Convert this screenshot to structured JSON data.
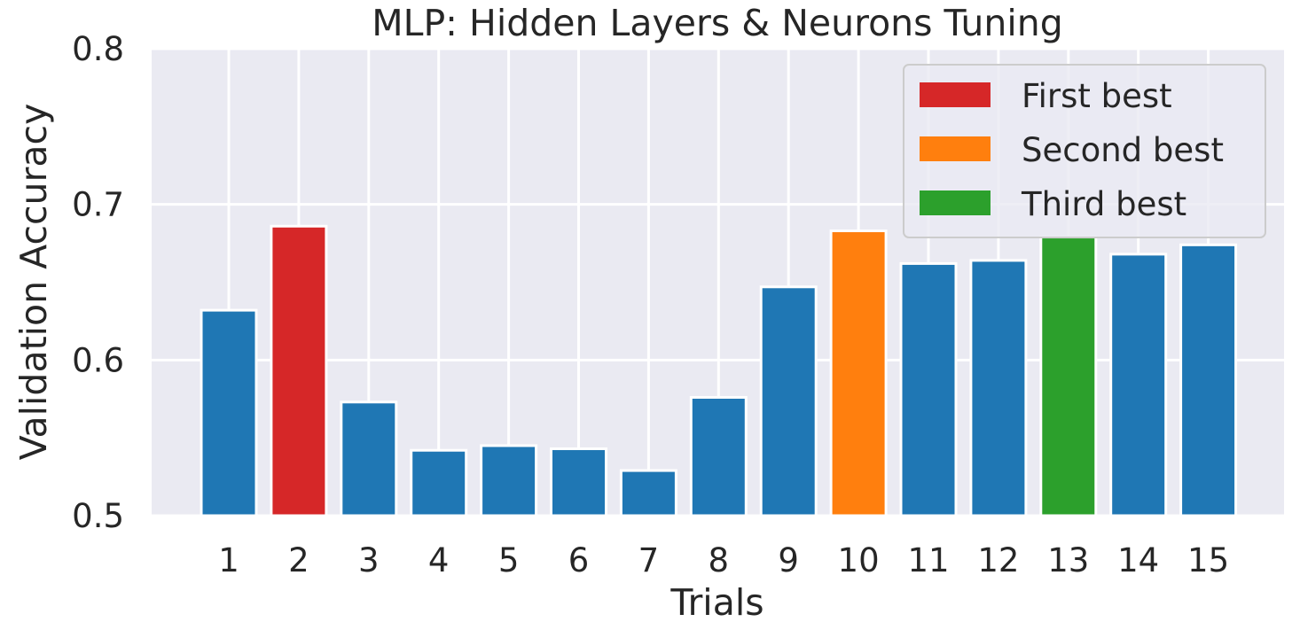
{
  "chart_data": {
    "type": "bar",
    "title": "MLP: Hidden Layers & Neurons Tuning",
    "xlabel": "Trials",
    "ylabel": "Validation Accuracy",
    "ylim": [
      0.5,
      0.8
    ],
    "yticks": [
      "0.5",
      "0.6",
      "0.7",
      "0.8"
    ],
    "grid": true,
    "legend_position": "top-right",
    "categories": [
      "1",
      "2",
      "3",
      "4",
      "5",
      "6",
      "7",
      "8",
      "9",
      "10",
      "11",
      "12",
      "13",
      "14",
      "15"
    ],
    "values": [
      0.632,
      0.686,
      0.573,
      0.542,
      0.545,
      0.543,
      0.529,
      0.576,
      0.647,
      0.683,
      0.662,
      0.664,
      0.679,
      0.668,
      0.674
    ],
    "bar_colors": [
      "#1f77b4",
      "#d62728",
      "#1f77b4",
      "#1f77b4",
      "#1f77b4",
      "#1f77b4",
      "#1f77b4",
      "#1f77b4",
      "#1f77b4",
      "#ff7f0e",
      "#1f77b4",
      "#1f77b4",
      "#2ca02c",
      "#1f77b4",
      "#1f77b4"
    ],
    "legend": [
      {
        "label": "First best",
        "color": "#d62728"
      },
      {
        "label": "Second best",
        "color": "#ff7f0e"
      },
      {
        "label": "Third best",
        "color": "#2ca02c"
      }
    ]
  }
}
